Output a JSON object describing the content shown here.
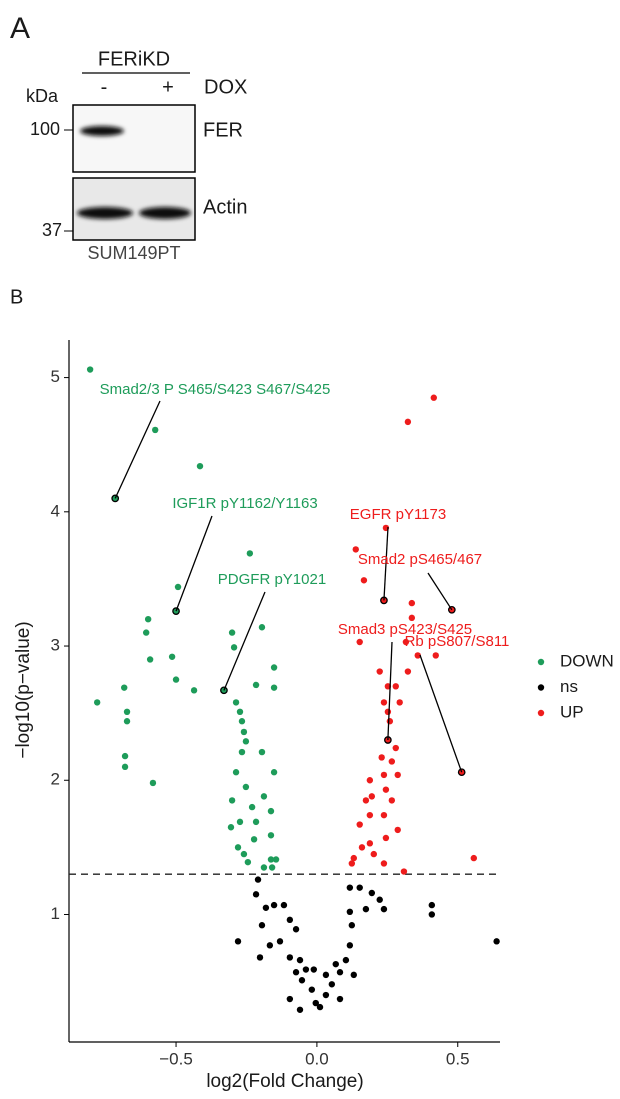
{
  "panel_a": {
    "label": "A",
    "group": "FERiKD",
    "treatment": "DOX",
    "unit": "kDa",
    "lanes": [
      "-",
      "+"
    ],
    "markers": [
      "100",
      "37"
    ],
    "bands": [
      "FER",
      "Actin"
    ],
    "cell_line": "SUM149PT"
  },
  "chart_data": {
    "type": "scatter",
    "panel_label": "B",
    "x_label": "log2(Fold Change)",
    "y_label": "−log10(p−value)",
    "xlim": [
      -0.88,
      0.65
    ],
    "ylim": [
      0.05,
      5.28
    ],
    "xticks": [
      {
        "value": -0.5,
        "label": "−0.5"
      },
      {
        "value": 0,
        "label": "0.0"
      },
      0.5
    ],
    "yticks": [
      1,
      2,
      3,
      4,
      5
    ],
    "threshold": 1.3,
    "series": [
      {
        "name": "DOWN",
        "color": "#1e9c5a",
        "x": [
          -0.805,
          -0.574,
          -0.415,
          -0.716,
          -0.238,
          -0.493,
          -0.5,
          -0.599,
          -0.606,
          -0.301,
          -0.195,
          -0.294,
          -0.592,
          -0.514,
          -0.152,
          -0.684,
          -0.5,
          -0.33,
          -0.216,
          -0.152,
          -0.78,
          -0.674,
          -0.674,
          -0.436,
          -0.287,
          -0.273,
          -0.266,
          -0.259,
          -0.252,
          -0.266,
          -0.195,
          -0.681,
          -0.681,
          -0.582,
          -0.287,
          -0.252,
          -0.152,
          -0.188,
          -0.301,
          -0.23,
          -0.163,
          -0.273,
          -0.216,
          -0.305,
          -0.223,
          -0.28,
          -0.163,
          -0.259,
          -0.163,
          -0.145,
          -0.188,
          -0.245,
          -0.159
        ],
        "values": [
          5.06,
          4.61,
          4.34,
          4.1,
          3.69,
          3.44,
          3.26,
          3.2,
          3.1,
          3.1,
          3.14,
          2.99,
          2.9,
          2.92,
          2.84,
          2.69,
          2.75,
          2.67,
          2.71,
          2.69,
          2.58,
          2.51,
          2.44,
          2.67,
          2.58,
          2.51,
          2.44,
          2.36,
          2.29,
          2.21,
          2.21,
          2.18,
          2.1,
          1.98,
          2.06,
          1.95,
          2.06,
          1.88,
          1.85,
          1.8,
          1.77,
          1.69,
          1.69,
          1.65,
          1.56,
          1.5,
          1.59,
          1.45,
          1.41,
          1.41,
          1.35,
          1.39,
          1.35
        ]
      },
      {
        "name": "ns",
        "color": "#000000",
        "x": [
          -0.209,
          -0.216,
          -0.181,
          -0.152,
          -0.117,
          -0.096,
          -0.195,
          -0.28,
          -0.074,
          -0.131,
          -0.096,
          -0.074,
          -0.053,
          -0.018,
          -0.004,
          0.011,
          0.032,
          0.053,
          0.082,
          0.103,
          0.117,
          0.124,
          0.117,
          0.117,
          0.152,
          0.195,
          0.223,
          0.238,
          0.174,
          0.408,
          0.408,
          0.638,
          -0.202,
          -0.06,
          -0.039,
          0.032,
          0.067,
          -0.096,
          -0.06,
          0.082,
          0.131,
          -0.167,
          -0.011
        ],
        "values": [
          1.26,
          1.15,
          1.05,
          1.07,
          1.07,
          0.96,
          0.92,
          0.8,
          0.89,
          0.8,
          0.68,
          0.57,
          0.51,
          0.44,
          0.34,
          0.31,
          0.4,
          0.48,
          0.57,
          0.66,
          0.77,
          0.92,
          1.02,
          1.2,
          1.2,
          1.16,
          1.11,
          1.04,
          1.04,
          1.07,
          1.0,
          0.8,
          0.68,
          0.66,
          0.59,
          0.55,
          0.63,
          0.37,
          0.29,
          0.37,
          0.55,
          0.77,
          0.59
        ]
      },
      {
        "name": "UP",
        "color": "#ee1c1c",
        "x": [
          0.415,
          0.323,
          0.138,
          0.245,
          0.167,
          0.238,
          0.337,
          0.479,
          0.337,
          0.316,
          0.152,
          0.358,
          0.422,
          0.223,
          0.323,
          0.252,
          0.28,
          0.238,
          0.294,
          0.252,
          0.259,
          0.252,
          0.28,
          0.23,
          0.266,
          0.514,
          0.238,
          0.287,
          0.188,
          0.245,
          0.195,
          0.174,
          0.266,
          0.188,
          0.238,
          0.152,
          0.287,
          0.188,
          0.245,
          0.16,
          0.202,
          0.131,
          0.124,
          0.238,
          0.557,
          0.309
        ],
        "values": [
          4.85,
          4.67,
          3.72,
          3.88,
          3.49,
          3.34,
          3.32,
          3.27,
          3.21,
          3.03,
          3.03,
          2.93,
          2.93,
          2.81,
          2.81,
          2.7,
          2.7,
          2.58,
          2.58,
          2.51,
          2.44,
          2.3,
          2.24,
          2.17,
          2.14,
          2.06,
          2.04,
          2.04,
          2.0,
          1.93,
          1.88,
          1.85,
          1.85,
          1.74,
          1.74,
          1.67,
          1.63,
          1.53,
          1.57,
          1.5,
          1.45,
          1.42,
          1.38,
          1.38,
          1.42,
          1.32
        ]
      }
    ],
    "annotations": [
      "Smad2/3 P S465/S423 S467/S425",
      "IGF1R pY1162/Y1163",
      "PDGFR pY1021",
      "EGFR pY1173",
      "Smad2 pS465/467",
      "Smad3 pS423/S425",
      "Rb pS807/S811"
    ]
  }
}
